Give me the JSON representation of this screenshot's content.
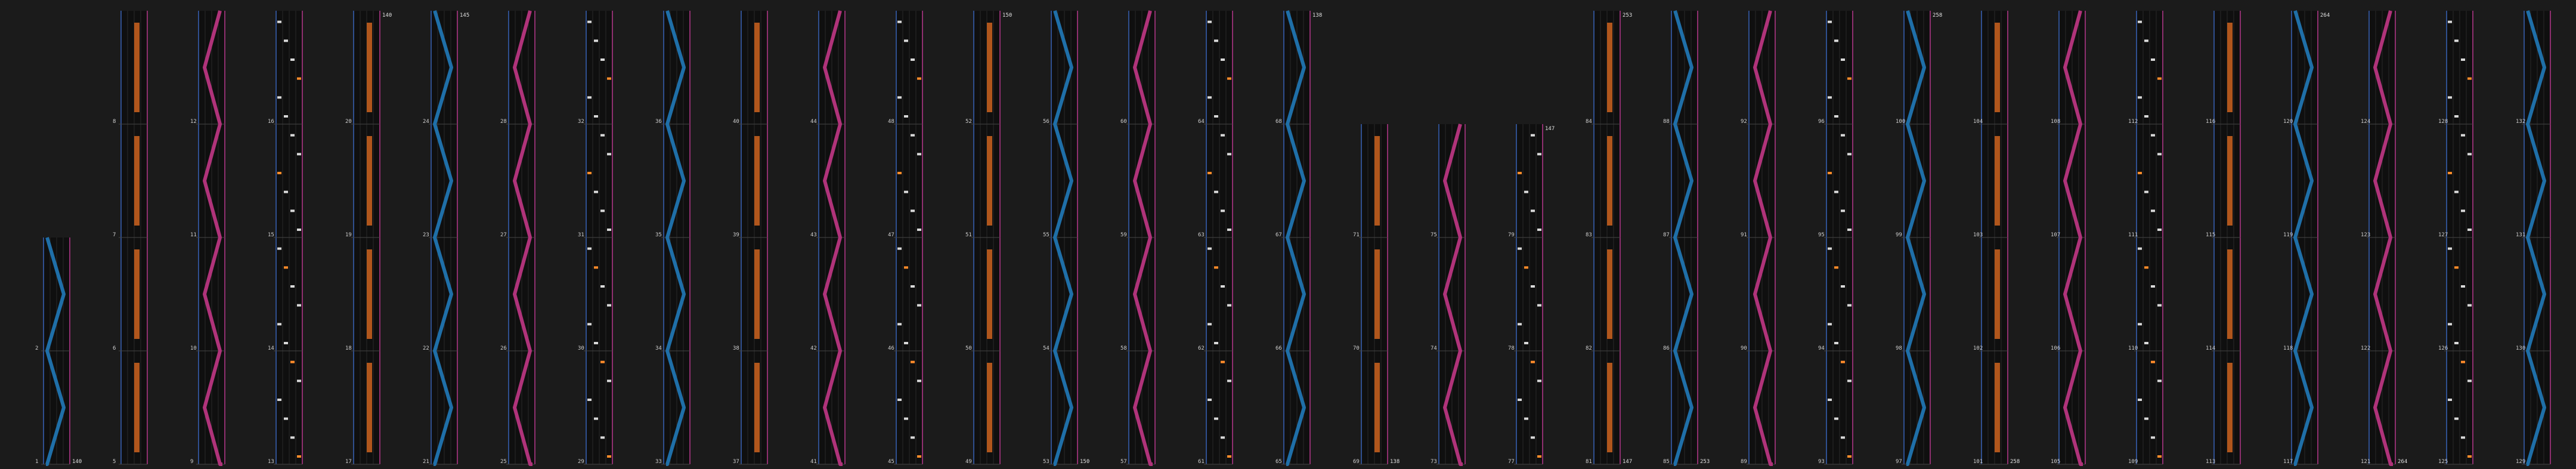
{
  "columns": [
    {
      "measures": [
        1,
        2,
        3,
        4
      ],
      "bpm_start": "140",
      "bpm_end": ""
    },
    {
      "measures": [
        5,
        6,
        7,
        8
      ],
      "bpm_start": "",
      "bpm_end": ""
    },
    {
      "measures": [
        9,
        10,
        11,
        12
      ],
      "bpm_start": "",
      "bpm_end": ""
    },
    {
      "measures": [
        13,
        14,
        15,
        16
      ],
      "bpm_start": "",
      "bpm_end": ""
    },
    {
      "measures": [
        17,
        18,
        19,
        20
      ],
      "bpm_start": "",
      "bpm_end": "140"
    },
    {
      "measures": [
        21,
        22,
        23,
        24
      ],
      "bpm_start": "",
      "bpm_end": "145"
    },
    {
      "measures": [
        25,
        26,
        27,
        28
      ],
      "bpm_start": "",
      "bpm_end": ""
    },
    {
      "measures": [
        29,
        30,
        31,
        32
      ],
      "bpm_start": "",
      "bpm_end": ""
    },
    {
      "measures": [
        33,
        34,
        35,
        36
      ],
      "bpm_start": "",
      "bpm_end": ""
    },
    {
      "measures": [
        37,
        38,
        39,
        40
      ],
      "bpm_start": "",
      "bpm_end": ""
    },
    {
      "measures": [
        41,
        42,
        43,
        44
      ],
      "bpm_start": "",
      "bpm_end": ""
    },
    {
      "measures": [
        45,
        46,
        47,
        48
      ],
      "bpm_start": "",
      "bpm_end": ""
    },
    {
      "measures": [
        49,
        50,
        51,
        52
      ],
      "bpm_start": "",
      "bpm_end": "150"
    },
    {
      "measures": [
        53,
        54,
        55,
        56
      ],
      "bpm_start": "150",
      "bpm_end": ""
    },
    {
      "measures": [
        57,
        58,
        59,
        60
      ],
      "bpm_start": "",
      "bpm_end": ""
    },
    {
      "measures": [
        61,
        62,
        63,
        64
      ],
      "bpm_start": "",
      "bpm_end": ""
    },
    {
      "measures": [
        65,
        66,
        67,
        68
      ],
      "bpm_start": "",
      "bpm_end": "138"
    },
    {
      "measures": [
        69,
        70,
        71,
        72
      ],
      "bpm_start": "138",
      "bpm_end": ""
    },
    {
      "measures": [
        73,
        74,
        75,
        76
      ],
      "bpm_start": "",
      "bpm_end": ""
    },
    {
      "measures": [
        77,
        78,
        79,
        80
      ],
      "bpm_start": "",
      "bpm_end": "147"
    },
    {
      "measures": [
        81,
        82,
        83,
        84
      ],
      "bpm_start": "147",
      "bpm_end": "253"
    },
    {
      "measures": [
        85,
        86,
        87,
        88
      ],
      "bpm_start": "253",
      "bpm_end": ""
    },
    {
      "measures": [
        89,
        90,
        91,
        92
      ],
      "bpm_start": "",
      "bpm_end": ""
    },
    {
      "measures": [
        93,
        94,
        95,
        96
      ],
      "bpm_start": "",
      "bpm_end": ""
    },
    {
      "measures": [
        97,
        98,
        99,
        100
      ],
      "bpm_start": "",
      "bpm_end": "258"
    },
    {
      "measures": [
        101,
        102,
        103,
        104
      ],
      "bpm_start": "258",
      "bpm_end": ""
    },
    {
      "measures": [
        105,
        106,
        107,
        108
      ],
      "bpm_start": "",
      "bpm_end": ""
    },
    {
      "measures": [
        109,
        110,
        111,
        112
      ],
      "bpm_start": "",
      "bpm_end": ""
    },
    {
      "measures": [
        113,
        114,
        115,
        116
      ],
      "bpm_start": "",
      "bpm_end": ""
    },
    {
      "measures": [
        117,
        118,
        119,
        120
      ],
      "bpm_start": "",
      "bpm_end": "264"
    },
    {
      "measures": [
        121,
        122,
        123,
        124
      ],
      "bpm_start": "264",
      "bpm_end": ""
    },
    {
      "measures": [
        125,
        126,
        127,
        128
      ],
      "bpm_start": "",
      "bpm_end": ""
    },
    {
      "measures": [
        129,
        130,
        131,
        132
      ],
      "bpm_start": "",
      "bpm_end": ""
    }
  ],
  "colors": {
    "laser_left": "#1f6fa8",
    "laser_right": "#b0337a",
    "long_note": "#b0561c",
    "chip": "#ff8c2a"
  }
}
